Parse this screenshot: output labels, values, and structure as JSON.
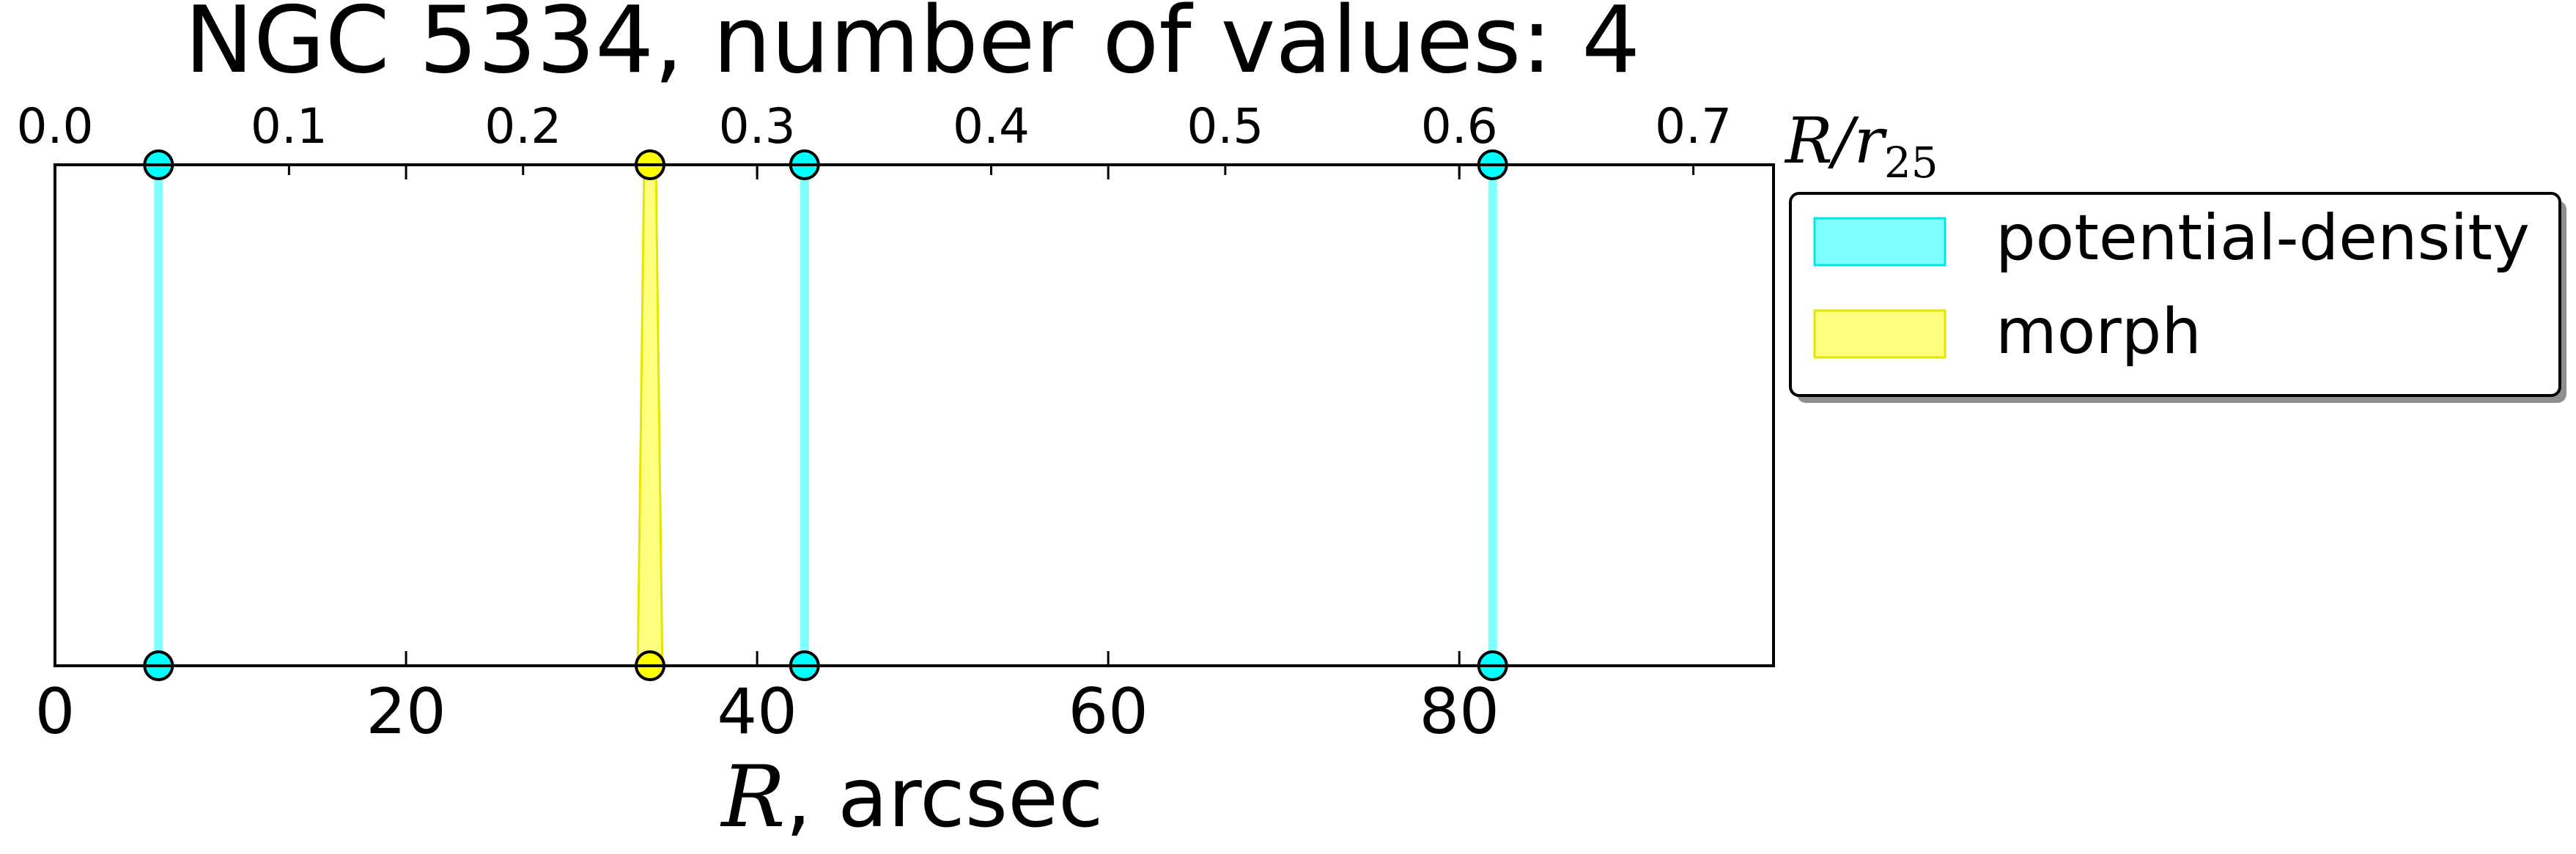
{
  "chart_data": {
    "type": "scatter",
    "title": "NGC 5334, number of values: 4",
    "xlabel_math": "R",
    "xlabel_rest": ", arcsec",
    "xlim": [
      0,
      97.9
    ],
    "x_ticks": [
      0,
      20,
      40,
      60,
      80
    ],
    "top_axis": {
      "label_main": "R/r",
      "label_sub": "25",
      "ratio_per_arcsec": 0.0075,
      "ticks": [
        "0.0",
        "0.1",
        "0.2",
        "0.3",
        "0.4",
        "0.5",
        "0.6",
        "0.7"
      ]
    },
    "grid": false,
    "legend_position": "outside right, top",
    "series": [
      {
        "name": "potential-density",
        "color": "#00e5e5",
        "fill": "#7fffff",
        "x": [
          5.9,
          42.7,
          81.9
        ],
        "style": "line"
      },
      {
        "name": "morph",
        "color": "#e5e500",
        "fill": "#ffff7f",
        "x": [
          33.2,
          34.6
        ],
        "style": "band"
      }
    ]
  }
}
